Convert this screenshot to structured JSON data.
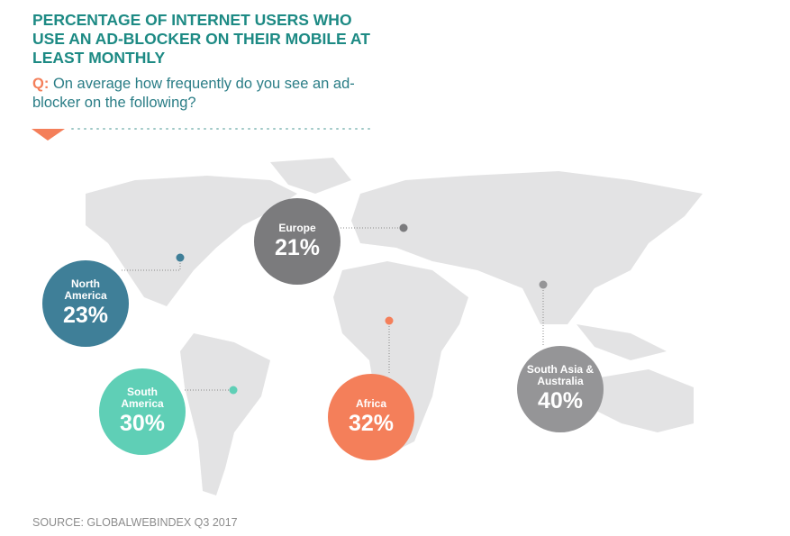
{
  "title": "PERCENTAGE OF INTERNET USERS WHO USE AN AD-BLOCKER ON THEIR MOBILE AT LEAST MONTHLY",
  "question": {
    "prefix": "Q:",
    "text": "On average how frequently do you see an ad-blocker on the following?"
  },
  "regions": [
    {
      "name": "North America",
      "value_label": "23%"
    },
    {
      "name": "Europe",
      "value_label": "21%"
    },
    {
      "name": "South America",
      "value_label": "30%"
    },
    {
      "name": "Africa",
      "value_label": "32%"
    },
    {
      "name": "South Asia & Australia",
      "value_label": "40%"
    }
  ],
  "source": "SOURCE: GLOBALWEBINDEX Q3 2017"
}
